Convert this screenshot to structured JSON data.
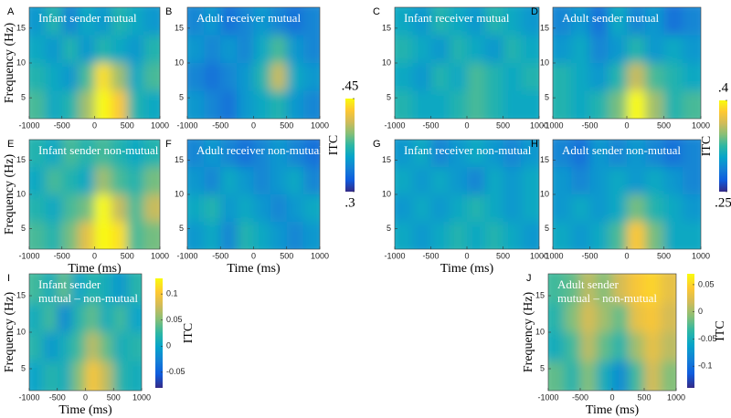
{
  "axes": {
    "xlim": [
      -1000,
      1000
    ],
    "ylim": [
      2,
      18
    ],
    "xticks": [
      -1000,
      -500,
      0,
      500,
      1000
    ],
    "yticks": [
      5,
      10,
      15
    ],
    "xlabel": "Time (ms)",
    "ylabel": "Frequency (Hz)"
  },
  "colorbars": [
    {
      "label": "ITC",
      "clim": [
        0.3,
        0.45
      ],
      "ticks": [
        {
          "value": 0.45,
          "label": ".45"
        },
        {
          "value": 0.3,
          "label": ".3"
        }
      ]
    },
    {
      "label": "ITC",
      "clim": [
        0.25,
        0.4
      ],
      "ticks": [
        {
          "value": 0.4,
          "label": ".4"
        },
        {
          "value": 0.25,
          "label": ".25"
        }
      ]
    },
    {
      "label": "ITC",
      "clim": [
        -0.08,
        0.13
      ],
      "ticks": [
        0.1,
        0.05,
        0,
        -0.05
      ]
    },
    {
      "label": "ITC",
      "clim": [
        -0.14,
        0.07
      ],
      "ticks": [
        0.05,
        0,
        -0.05,
        -0.1
      ]
    }
  ],
  "panels": [
    {
      "letter": "A",
      "title": [
        "Infant sender  mutual"
      ],
      "colorbar": 0,
      "grid": [
        [
          0.35,
          0.37,
          0.34,
          0.36,
          0.35,
          0.37,
          0.36,
          0.35
        ],
        [
          0.36,
          0.35,
          0.37,
          0.35,
          0.37,
          0.36,
          0.35,
          0.37
        ],
        [
          0.37,
          0.36,
          0.35,
          0.38,
          0.44,
          0.4,
          0.36,
          0.38
        ],
        [
          0.38,
          0.36,
          0.37,
          0.4,
          0.46,
          0.43,
          0.37,
          0.36
        ]
      ]
    },
    {
      "letter": "B",
      "title": [
        "Adult receiver  mutual"
      ],
      "colorbar": 0,
      "grid": [
        [
          0.34,
          0.35,
          0.33,
          0.34,
          0.35,
          0.34,
          0.33,
          0.34
        ],
        [
          0.35,
          0.34,
          0.35,
          0.34,
          0.36,
          0.38,
          0.35,
          0.34
        ],
        [
          0.34,
          0.33,
          0.34,
          0.35,
          0.37,
          0.41,
          0.36,
          0.35
        ],
        [
          0.35,
          0.34,
          0.33,
          0.35,
          0.36,
          0.37,
          0.35,
          0.34
        ]
      ]
    },
    {
      "letter": "C",
      "title": [
        "Infant receiver  mutual"
      ],
      "colorbar": 1,
      "grid": [
        [
          0.31,
          0.3,
          0.32,
          0.31,
          0.3,
          0.32,
          0.31,
          0.3
        ],
        [
          0.32,
          0.31,
          0.3,
          0.32,
          0.31,
          0.3,
          0.32,
          0.31
        ],
        [
          0.31,
          0.3,
          0.32,
          0.31,
          0.33,
          0.32,
          0.31,
          0.32
        ],
        [
          0.32,
          0.31,
          0.31,
          0.32,
          0.33,
          0.32,
          0.31,
          0.31
        ]
      ]
    },
    {
      "letter": "D",
      "title": [
        "Adult sender  mutual"
      ],
      "colorbar": 1,
      "grid": [
        [
          0.29,
          0.3,
          0.28,
          0.31,
          0.29,
          0.3,
          0.28,
          0.29
        ],
        [
          0.3,
          0.31,
          0.29,
          0.3,
          0.32,
          0.3,
          0.31,
          0.3
        ],
        [
          0.32,
          0.31,
          0.3,
          0.32,
          0.36,
          0.33,
          0.32,
          0.31
        ],
        [
          0.32,
          0.31,
          0.32,
          0.34,
          0.4,
          0.35,
          0.32,
          0.33
        ]
      ]
    },
    {
      "letter": "E",
      "title": [
        "Infant sender  non-mutual"
      ],
      "colorbar": 0,
      "grid": [
        [
          0.37,
          0.36,
          0.38,
          0.37,
          0.38,
          0.37,
          0.36,
          0.37
        ],
        [
          0.36,
          0.38,
          0.37,
          0.36,
          0.4,
          0.38,
          0.37,
          0.39
        ],
        [
          0.37,
          0.36,
          0.38,
          0.39,
          0.45,
          0.41,
          0.38,
          0.41
        ],
        [
          0.38,
          0.37,
          0.39,
          0.42,
          0.47,
          0.44,
          0.38,
          0.39
        ]
      ]
    },
    {
      "letter": "F",
      "title": [
        "Adult receiver  non-mutual"
      ],
      "colorbar": 0,
      "grid": [
        [
          0.34,
          0.35,
          0.34,
          0.33,
          0.34,
          0.35,
          0.34,
          0.33
        ],
        [
          0.35,
          0.34,
          0.36,
          0.35,
          0.34,
          0.35,
          0.36,
          0.34
        ],
        [
          0.36,
          0.37,
          0.35,
          0.36,
          0.35,
          0.34,
          0.35,
          0.36
        ],
        [
          0.35,
          0.36,
          0.34,
          0.37,
          0.36,
          0.35,
          0.34,
          0.35
        ]
      ]
    },
    {
      "letter": "G",
      "title": [
        "Infant receiver  non-mutual"
      ],
      "colorbar": 1,
      "grid": [
        [
          0.3,
          0.31,
          0.29,
          0.3,
          0.31,
          0.3,
          0.29,
          0.3
        ],
        [
          0.31,
          0.3,
          0.31,
          0.3,
          0.29,
          0.31,
          0.3,
          0.31
        ],
        [
          0.3,
          0.31,
          0.3,
          0.31,
          0.32,
          0.31,
          0.3,
          0.31
        ],
        [
          0.31,
          0.3,
          0.31,
          0.32,
          0.31,
          0.32,
          0.31,
          0.3
        ]
      ]
    },
    {
      "letter": "H",
      "title": [
        "Adult sender  non-mutual"
      ],
      "colorbar": 1,
      "grid": [
        [
          0.29,
          0.28,
          0.3,
          0.29,
          0.3,
          0.29,
          0.28,
          0.29
        ],
        [
          0.3,
          0.29,
          0.3,
          0.31,
          0.3,
          0.31,
          0.3,
          0.29
        ],
        [
          0.3,
          0.31,
          0.3,
          0.31,
          0.34,
          0.32,
          0.31,
          0.3
        ],
        [
          0.31,
          0.3,
          0.31,
          0.33,
          0.38,
          0.34,
          0.31,
          0.31
        ]
      ]
    },
    {
      "letter": "I",
      "title": [
        "Infant sender",
        "mutual – non-mutual"
      ],
      "colorbar": 2,
      "grid": [
        [
          0.03,
          0.01,
          0.04,
          0.0,
          0.02,
          0.01,
          -0.01,
          0.02
        ],
        [
          0.01,
          0.03,
          -0.02,
          0.02,
          0.04,
          0.01,
          0.03,
          0.0
        ],
        [
          0.02,
          -0.01,
          0.01,
          0.03,
          0.07,
          0.04,
          0.01,
          0.02
        ],
        [
          0.0,
          0.02,
          0.01,
          0.05,
          0.1,
          0.07,
          0.02,
          0.01
        ]
      ]
    },
    {
      "letter": "J",
      "title": [
        "Adult sender",
        "mutual – non-mutual"
      ],
      "colorbar": 3,
      "grid": [
        [
          -0.03,
          -0.02,
          0.01,
          -0.01,
          0.02,
          0.04,
          0.05,
          0.03
        ],
        [
          -0.04,
          -0.01,
          0.02,
          0.0,
          -0.02,
          0.03,
          0.04,
          0.02
        ],
        [
          -0.05,
          -0.03,
          0.01,
          -0.02,
          -0.04,
          0.0,
          0.03,
          0.01
        ],
        [
          -0.02,
          -0.04,
          -0.01,
          -0.05,
          -0.08,
          -0.03,
          0.02,
          -0.01
        ]
      ]
    }
  ]
}
